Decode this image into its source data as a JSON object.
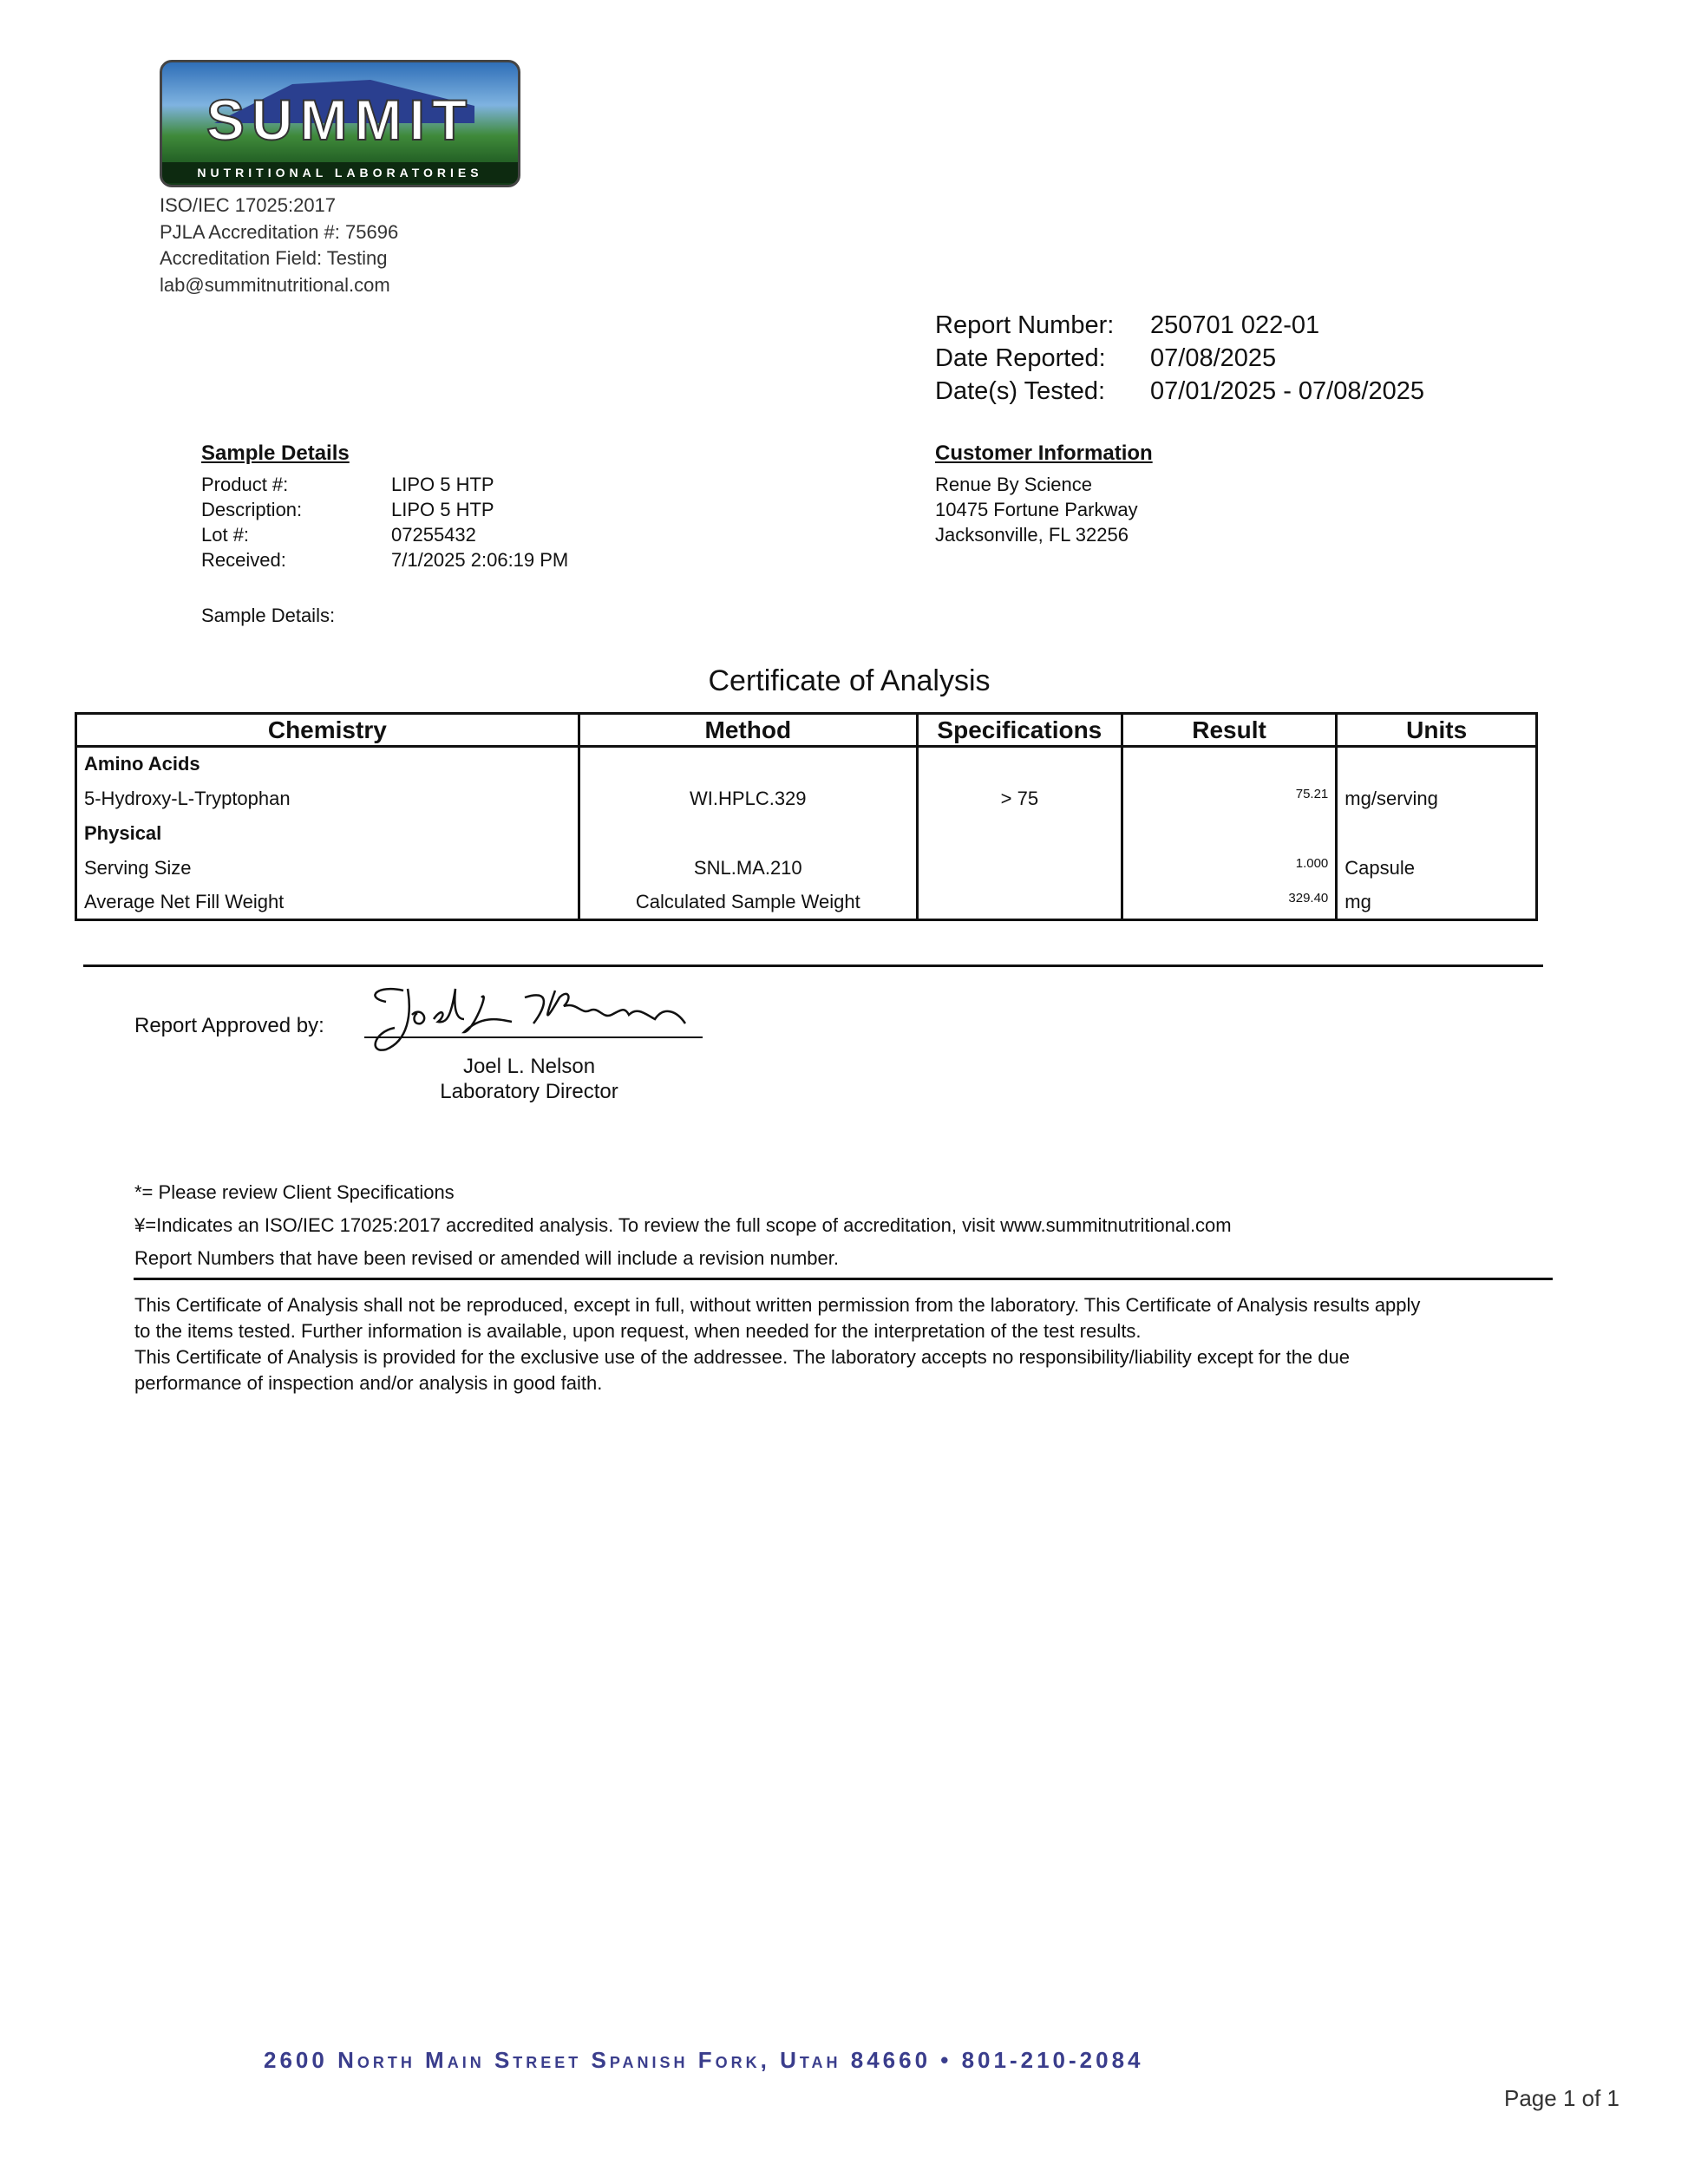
{
  "lab": {
    "logo_text": "SUMMIT",
    "logo_subtext": "NUTRITIONAL LABORATORIES",
    "lines": [
      "ISO/IEC 17025:2017",
      "PJLA Accreditation #: 75696",
      "Accreditation Field: Testing",
      "lab@summitnutritional.com"
    ]
  },
  "report": {
    "number_label": "Report Number:",
    "number": "250701 022-01",
    "reported_label": "Date Reported:",
    "reported": "07/08/2025",
    "tested_label": "Date(s) Tested:",
    "tested": "07/01/2025 - 07/08/2025"
  },
  "sample": {
    "heading": "Sample Details",
    "rows": [
      {
        "label": "Product #:",
        "value": "LIPO 5 HTP"
      },
      {
        "label": "Description:",
        "value": "LIPO 5 HTP"
      },
      {
        "label": "Lot #:",
        "value": "07255432"
      },
      {
        "label": "Received:",
        "value": "7/1/2025 2:06:19 PM"
      }
    ],
    "details_label": "Sample Details:"
  },
  "customer": {
    "heading": "Customer Information",
    "lines": [
      "Renue By Science",
      "10475 Fortune Parkway",
      "Jacksonville, FL 32256"
    ]
  },
  "title": "Certificate of Analysis",
  "table": {
    "headers": [
      "Chemistry",
      "Method",
      "Specifications",
      "Result",
      "Units"
    ],
    "rows": [
      {
        "chem": "Amino Acids",
        "group": true
      },
      {
        "chem": "5-Hydroxy-L-Tryptophan",
        "method": "WI.HPLC.329",
        "spec": "> 75",
        "result": "75.21",
        "units": "mg/serving"
      },
      {
        "chem": "Physical",
        "group": true
      },
      {
        "chem": "Serving Size",
        "method": "SNL.MA.210",
        "spec": "",
        "result": "1.000",
        "units": "Capsule"
      },
      {
        "chem": "Average Net Fill Weight",
        "method": "Calculated Sample Weight",
        "spec": "",
        "result": "329.40",
        "units": "mg"
      }
    ]
  },
  "approval": {
    "label": "Report Approved by:",
    "signature": "Joel L Nelson",
    "name": "Joel L. Nelson",
    "role": "Laboratory Director"
  },
  "notes": [
    "*= Please review Client Specifications",
    "¥=Indicates an ISO/IEC 17025:2017 accredited analysis. To review the full scope of accreditation, visit www.summitnutritional.com",
    "Report Numbers that have been revised or amended will include a revision number."
  ],
  "disclaimer": [
    "This Certificate of Analysis shall not be reproduced, except in full, without written permission from the laboratory. This Certificate of Analysis results apply",
    "to the items tested. Further information is available, upon request, when needed for the interpretation of the test results.",
    "This Certificate of Analysis is provided for the exclusive use of the addressee. The laboratory accepts no responsibility/liability except for the due",
    "performance of inspection and/or analysis in good faith."
  ],
  "footer": {
    "address": "2600 North Main Street Spanish Fork, Utah  84660 • 801-210-2084",
    "page": "Page 1 of 1"
  }
}
